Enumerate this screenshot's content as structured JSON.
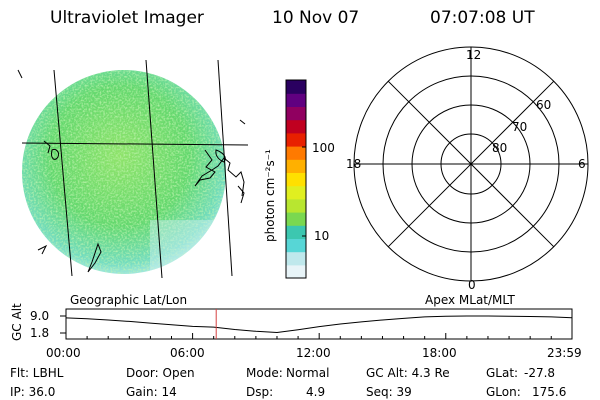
{
  "header": {
    "instrument": "Ultraviolet Imager",
    "date": "10 Nov 07",
    "time": "07:07:08 UT"
  },
  "colorbar": {
    "unit_label": "photon cm⁻²s⁻¹",
    "tick_100": "100",
    "tick_10": "10",
    "colors": [
      "#e8f4f8",
      "#bfe8ec",
      "#57d6d6",
      "#3cc7b0",
      "#7ad850",
      "#b8e630",
      "#e0ef20",
      "#ffe000",
      "#ffb000",
      "#ff7a00",
      "#e82000",
      "#c00020",
      "#900060",
      "#600080",
      "#2a0060"
    ]
  },
  "geo_panel": {
    "label": "Geographic Lat/Lon"
  },
  "polar_panel": {
    "label": "Apex MLat/MLT",
    "mlt_labels": {
      "top": "12",
      "left": "18",
      "right": "6",
      "bottom": "0"
    },
    "lat_labels": [
      "60",
      "70",
      "80"
    ]
  },
  "chart_data": {
    "type": "line",
    "ylabel": "GC Alt",
    "yticks": [
      "9.0",
      "1.8"
    ],
    "ylim": [
      1.8,
      9.0
    ],
    "xlim_hours": [
      0,
      23.983
    ],
    "xticks": [
      "00:00",
      "06:00",
      "12:00",
      "18:00",
      "23:59"
    ],
    "current_time_hours": 7.119,
    "series": [
      {
        "x": [
          0,
          1,
          2,
          3,
          4,
          5,
          6,
          7,
          8,
          9,
          10,
          11,
          12,
          13,
          14,
          15,
          16,
          17,
          18,
          19,
          20,
          21,
          22,
          23,
          23.983
        ],
        "y": [
          8.2,
          7.8,
          7.3,
          6.7,
          6.0,
          5.3,
          4.6,
          4.3,
          3.3,
          2.5,
          2.0,
          3.2,
          4.5,
          5.6,
          6.5,
          7.3,
          8.0,
          8.6,
          8.9,
          9.0,
          9.0,
          8.9,
          8.8,
          8.6,
          8.3
        ]
      }
    ]
  },
  "info": {
    "col1": [
      "Flt: LBHL",
      "IP: 36.0"
    ],
    "col2": [
      "Door: Open",
      "Gain: 14"
    ],
    "col3_a": [
      "Mode:",
      "Dsp:"
    ],
    "col3_b": [
      "Normal",
      "4.9"
    ],
    "col4": [
      "GC Alt: 4.3 Re",
      "Seq: 39"
    ],
    "col5_a": [
      "GLat:",
      "GLon:"
    ],
    "col5_b": [
      "-27.8",
      "175.6"
    ]
  }
}
